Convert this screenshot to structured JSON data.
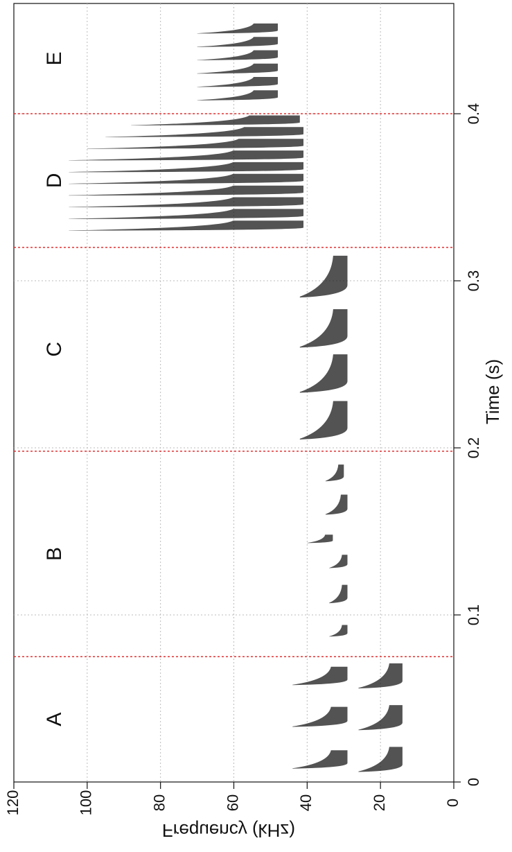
{
  "chart_data": {
    "type": "spectrogram",
    "x_label": "Time (s)",
    "y_label": "Frequency (kHz)",
    "xlim": [
      0,
      0.466
    ],
    "xticks": [
      0,
      0.1,
      0.2,
      0.3,
      0.4
    ],
    "ylim": [
      0,
      120
    ],
    "yticks": [
      0,
      20,
      40,
      60,
      80,
      100,
      120
    ],
    "grid": true,
    "rotated": true,
    "sections": [
      "A",
      "B",
      "C",
      "D",
      "E"
    ],
    "dividers": [
      0.075,
      0.198,
      0.32,
      0.4
    ],
    "divider_color": "#e03030",
    "call_color": "#1a1a1a",
    "calls": [
      {
        "t": [
          0.006,
          0.021
        ],
        "f": [
          14,
          26
        ]
      },
      {
        "t": [
          0.008,
          0.019
        ],
        "f": [
          29,
          44
        ]
      },
      {
        "t": [
          0.031,
          0.046
        ],
        "f": [
          14,
          26
        ]
      },
      {
        "t": [
          0.033,
          0.045
        ],
        "f": [
          29,
          44
        ]
      },
      {
        "t": [
          0.056,
          0.071
        ],
        "f": [
          14,
          26
        ]
      },
      {
        "t": [
          0.058,
          0.069
        ],
        "f": [
          29,
          44
        ]
      },
      {
        "t": [
          0.087,
          0.094
        ],
        "f": [
          29,
          34
        ]
      },
      {
        "t": [
          0.107,
          0.118
        ],
        "f": [
          29,
          34
        ]
      },
      {
        "t": [
          0.128,
          0.136
        ],
        "f": [
          29,
          34
        ]
      },
      {
        "t": [
          0.143,
          0.148
        ],
        "f": [
          33,
          40
        ]
      },
      {
        "t": [
          0.16,
          0.172
        ],
        "f": [
          29,
          35
        ]
      },
      {
        "t": [
          0.18,
          0.19
        ],
        "f": [
          30,
          35
        ]
      },
      {
        "t": [
          0.205,
          0.228
        ],
        "f": [
          29,
          42
        ]
      },
      {
        "t": [
          0.233,
          0.256
        ],
        "f": [
          29,
          42
        ]
      },
      {
        "t": [
          0.26,
          0.283
        ],
        "f": [
          29,
          42
        ]
      },
      {
        "t": [
          0.29,
          0.315
        ],
        "f": [
          29,
          42
        ]
      },
      {
        "t": [
          0.33,
          0.336
        ],
        "f": [
          41,
          105
        ]
      },
      {
        "t": [
          0.337,
          0.343
        ],
        "f": [
          41,
          105
        ]
      },
      {
        "t": [
          0.344,
          0.35
        ],
        "f": [
          41,
          105
        ]
      },
      {
        "t": [
          0.351,
          0.357
        ],
        "f": [
          41,
          105
        ]
      },
      {
        "t": [
          0.358,
          0.364
        ],
        "f": [
          41,
          105
        ]
      },
      {
        "t": [
          0.365,
          0.371
        ],
        "f": [
          41,
          105
        ]
      },
      {
        "t": [
          0.372,
          0.378
        ],
        "f": [
          41,
          105
        ]
      },
      {
        "t": [
          0.379,
          0.385
        ],
        "f": [
          41,
          100
        ]
      },
      {
        "t": [
          0.386,
          0.392
        ],
        "f": [
          41,
          95
        ]
      },
      {
        "t": [
          0.393,
          0.399
        ],
        "f": [
          42,
          88
        ]
      },
      {
        "t": [
          0.408,
          0.414
        ],
        "f": [
          48,
          70
        ]
      },
      {
        "t": [
          0.416,
          0.422
        ],
        "f": [
          48,
          70
        ]
      },
      {
        "t": [
          0.424,
          0.43
        ],
        "f": [
          48,
          70
        ]
      },
      {
        "t": [
          0.432,
          0.438
        ],
        "f": [
          48,
          70
        ]
      },
      {
        "t": [
          0.44,
          0.446
        ],
        "f": [
          48,
          70
        ]
      },
      {
        "t": [
          0.448,
          0.454
        ],
        "f": [
          48,
          70
        ]
      }
    ]
  }
}
